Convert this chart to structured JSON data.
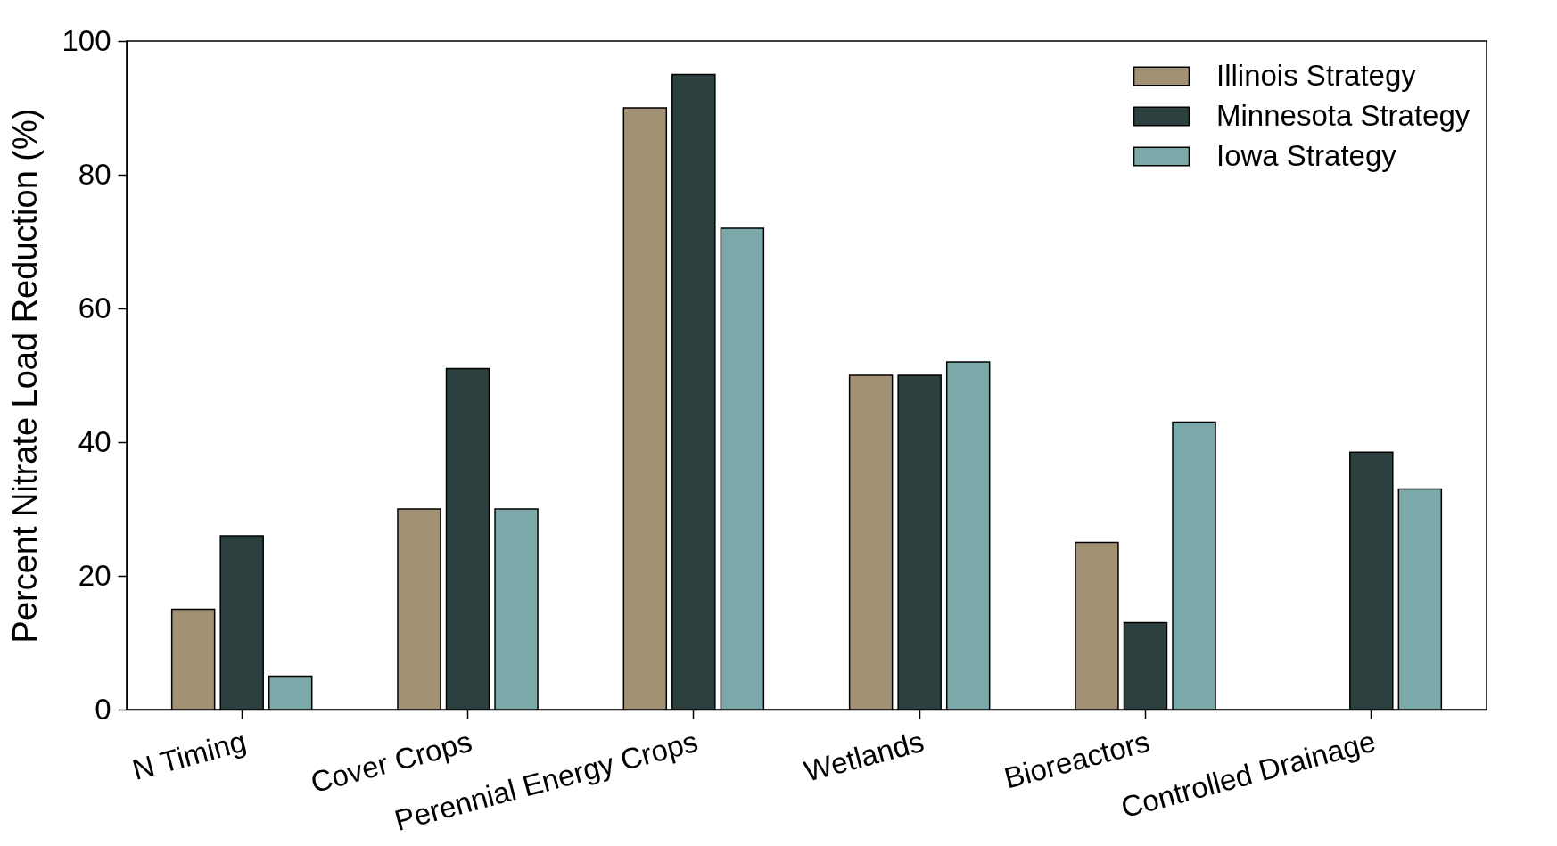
{
  "chart_data": {
    "type": "bar",
    "ylabel": "Percent Nitrate Load Reduction (%)",
    "categories": [
      "N Timing",
      "Cover Crops",
      "Perennial Energy Crops",
      "Wetlands",
      "Bioreactors",
      "Controlled Drainage"
    ],
    "series": [
      {
        "name": "Illinois Strategy",
        "color": "#a39173",
        "values": [
          15,
          30,
          90,
          50,
          25,
          null
        ]
      },
      {
        "name": "Minnesota Strategy",
        "color": "#2b403f",
        "values": [
          26,
          51,
          95,
          50,
          13,
          38.5
        ]
      },
      {
        "name": "Iowa Strategy",
        "color": "#7ba8a8",
        "values": [
          5,
          30,
          72,
          52,
          43,
          33
        ]
      }
    ],
    "ylim": [
      0,
      100
    ],
    "yticks": [
      0,
      20,
      40,
      60,
      80,
      100
    ],
    "legend": "top right"
  }
}
